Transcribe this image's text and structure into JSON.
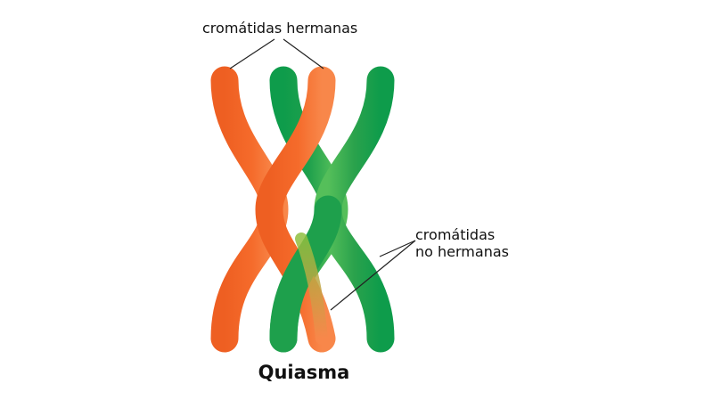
{
  "labels": {
    "sister_chromatids": "cromátidas hermanas",
    "non_sister_line1": "cromátidas",
    "non_sister_line2": "no hermanas"
  },
  "title": "Quiasma",
  "colors": {
    "orange_dark": "#ee5f22",
    "orange": "#f56b2b",
    "orange_light": "#f8874a",
    "green_dark": "#0e9c4b",
    "green": "#2aa24c",
    "green_light": "#55bf5a",
    "leader_line": "#222222"
  }
}
